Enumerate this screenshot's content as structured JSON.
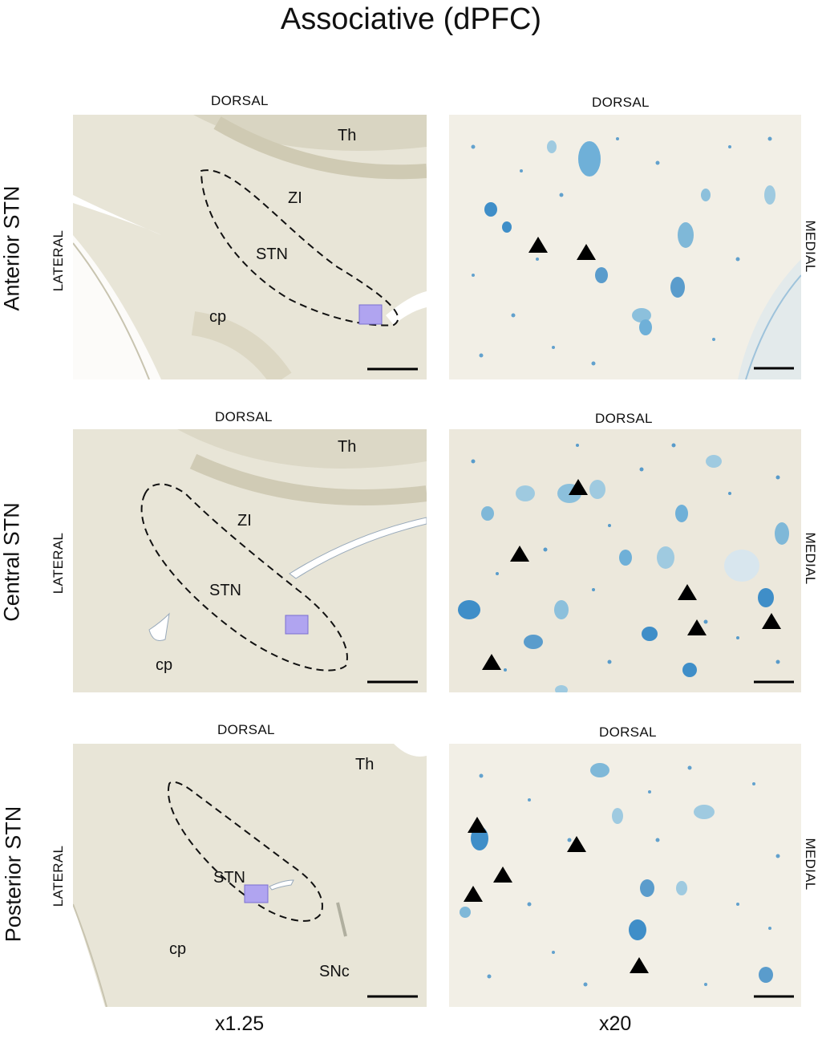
{
  "figure": {
    "title": "Associative (dPFC)",
    "rows": [
      {
        "label": "Anterior STN",
        "low_top": "DORSAL",
        "high_top": "DORSAL",
        "lateral": "LATERAL",
        "medial": "MEDIAL",
        "regions": [
          "Th",
          "ZI",
          "STN",
          "cp"
        ]
      },
      {
        "label": "Central STN",
        "low_top": "DORSAL",
        "high_top": "DORSAL",
        "lateral": "LATERAL",
        "medial": "MEDIAL",
        "regions": [
          "Th",
          "ZI",
          "STN",
          "cp"
        ]
      },
      {
        "label": "Posterior STN",
        "low_top": "DORSAL",
        "high_top": "DORSAL",
        "lateral": "LATERAL",
        "medial": "MEDIAL",
        "regions": [
          "Th",
          "STN",
          "cp",
          "SNc"
        ]
      }
    ],
    "magnifications": [
      "x1.25",
      "x20"
    ],
    "colors": {
      "tissue": "#e9e6d8",
      "cell_stain": "#3f8ec8",
      "highlight_box": "#b0a4f0",
      "marker": "#000000"
    }
  }
}
